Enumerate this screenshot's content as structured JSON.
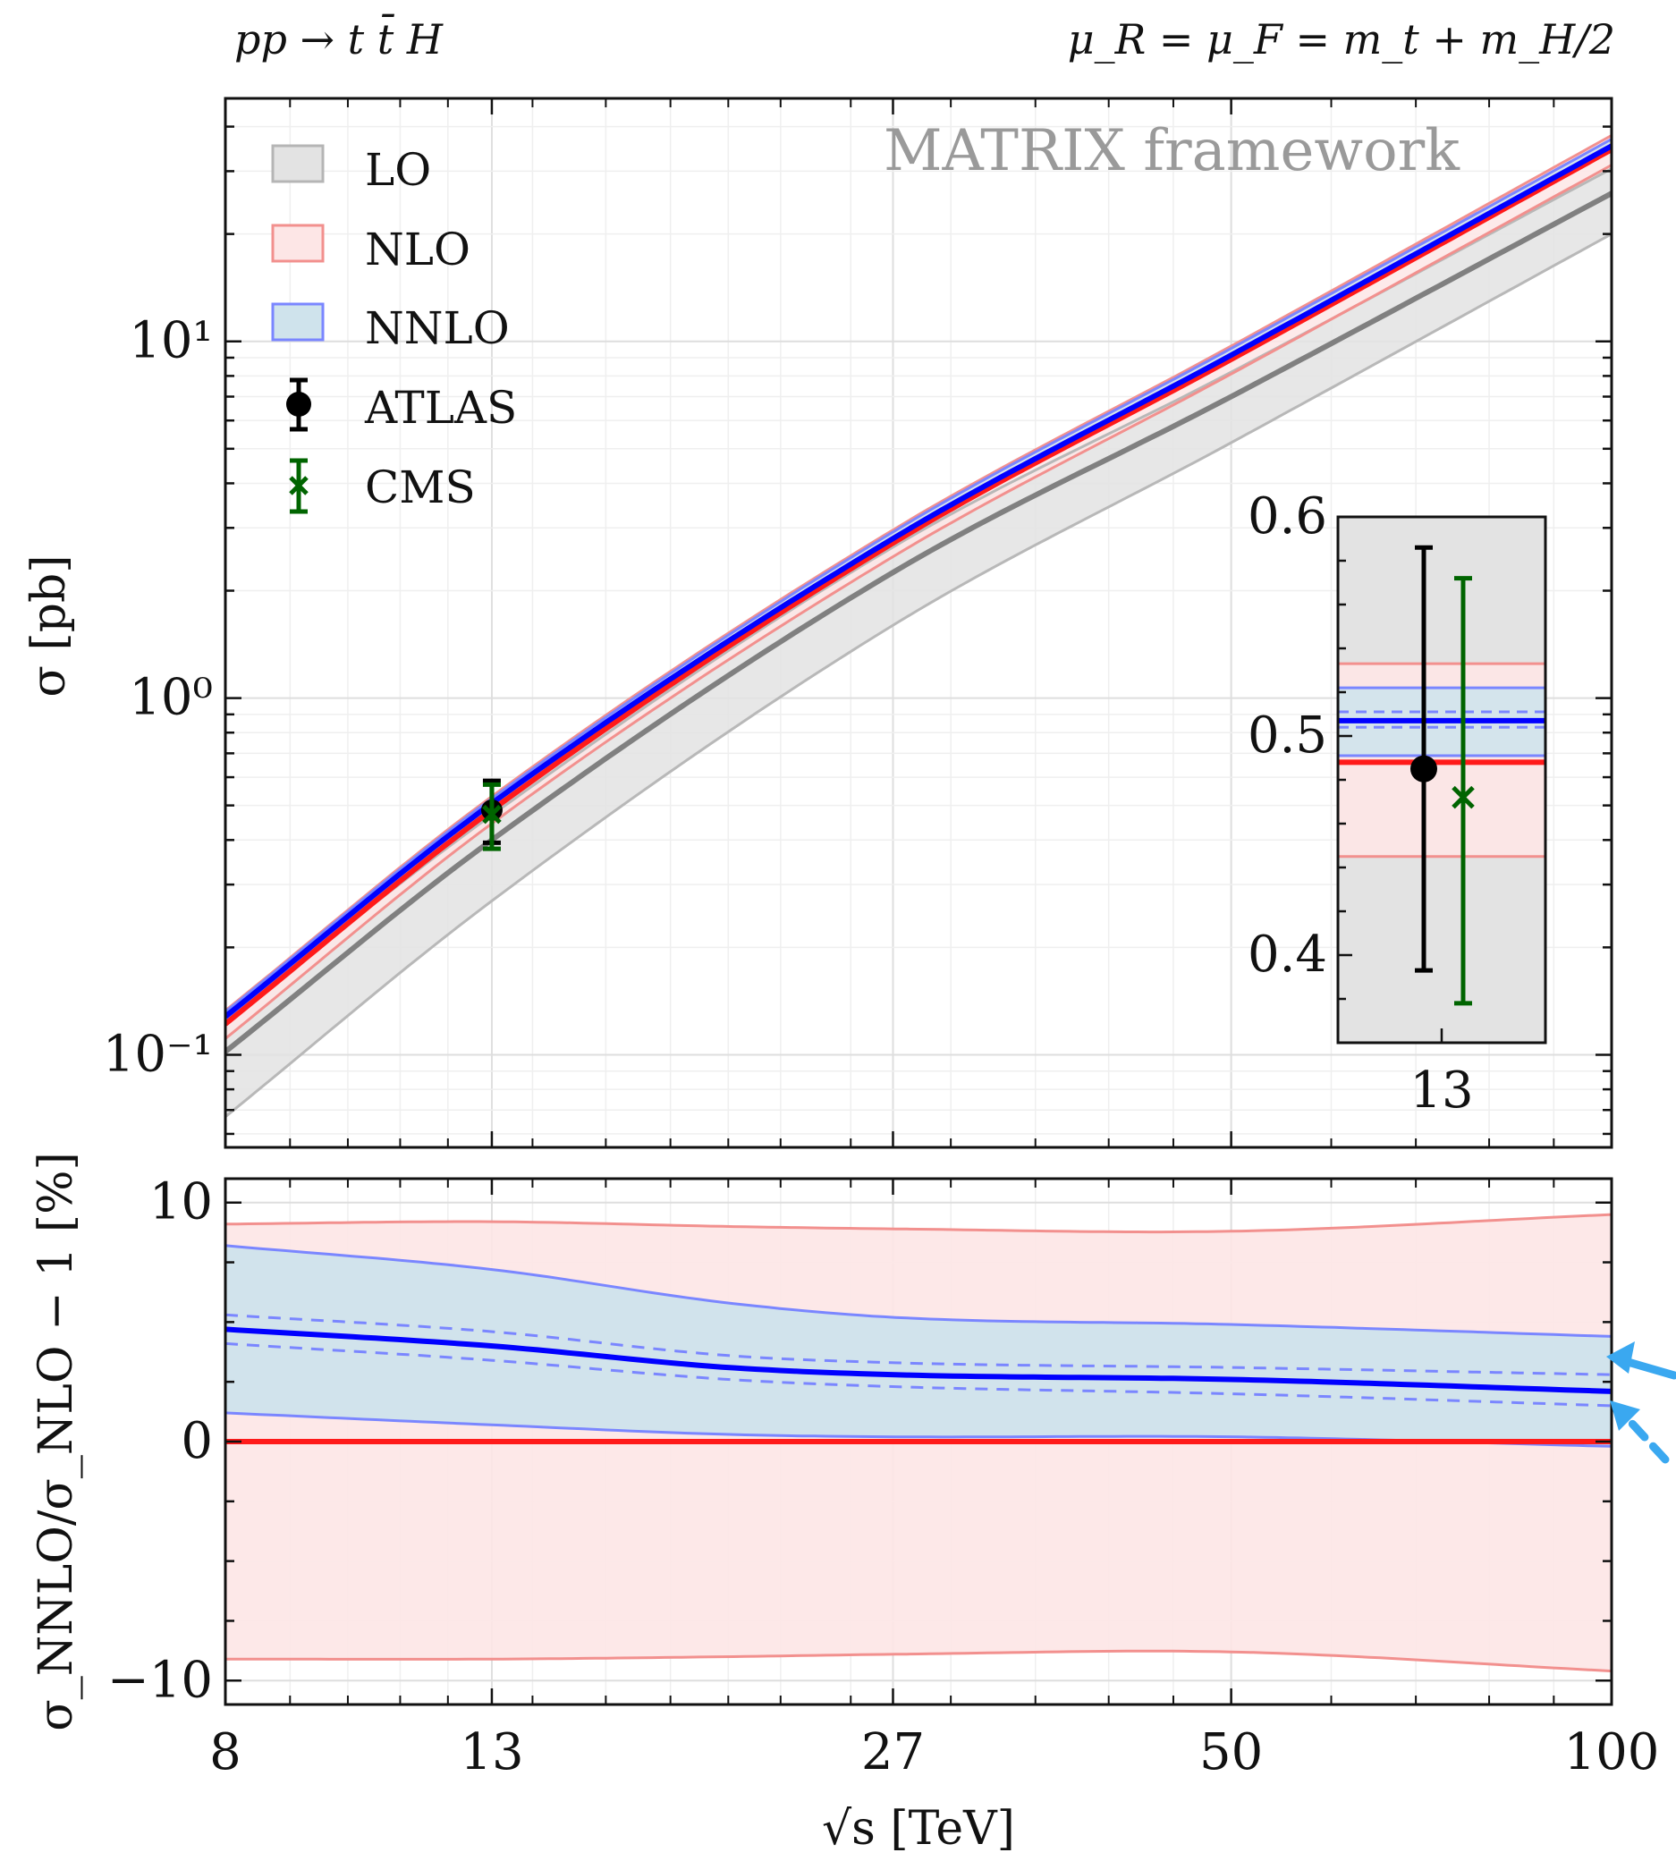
{
  "header": {
    "process": "pp → t t̄ H",
    "scale": "μ_R = μ_F = m_t + m_H/2"
  },
  "watermark": "MATRIX framework",
  "colors": {
    "LO": "#808080",
    "LO_band": "#e3e3e3",
    "NLO": "#ff1a1a",
    "NLO_band": "#fde6e6",
    "NLO_edge": "#f2908e",
    "NNLO": "#0000ff",
    "NNLO_band": "#cfe3ec",
    "NNLO_edge": "#7a86ff",
    "ATLAS": "#000000",
    "CMS": "#006400",
    "arrow": "#3aa8f0"
  },
  "chart_data": [
    {
      "type": "line",
      "xscale": "log",
      "yscale": "log",
      "xlim": [
        8,
        100
      ],
      "ylim": [
        0.055,
        48
      ],
      "ylabel": "σ [pb]",
      "yticks": [
        {
          "v": 0.1,
          "label": "10⁻¹"
        },
        {
          "v": 1,
          "label": "10⁰"
        },
        {
          "v": 10,
          "label": "10¹"
        }
      ],
      "grid": true,
      "legend": {
        "placement": "top-left",
        "entries": [
          "LO",
          "NLO",
          "NNLO",
          "ATLAS",
          "CMS"
        ]
      },
      "x": [
        8,
        13,
        27,
        50,
        100
      ],
      "series": [
        {
          "name": "LO",
          "central": [
            0.102,
            0.4,
            2.25,
            7.0,
            26.0
          ],
          "lower": [
            0.067,
            0.27,
            1.6,
            5.2,
            20.0
          ],
          "upper": [
            0.125,
            0.47,
            2.65,
            8.2,
            30.5
          ]
        },
        {
          "name": "NLO",
          "central": [
            0.122,
            0.485,
            2.72,
            8.9,
            34.5
          ],
          "lower": [
            0.111,
            0.445,
            2.49,
            8.1,
            31.2
          ],
          "upper": [
            0.133,
            0.53,
            2.96,
            9.7,
            37.8
          ]
        },
        {
          "name": "NNLO",
          "central": [
            0.128,
            0.507,
            2.8,
            9.15,
            35.3
          ],
          "lower": [
            0.124,
            0.49,
            2.73,
            8.95,
            34.6
          ],
          "upper": [
            0.132,
            0.523,
            2.92,
            9.55,
            36.9
          ]
        }
      ],
      "points": [
        {
          "name": "ATLAS",
          "x": 13,
          "y": 0.485,
          "low": 0.393,
          "high": 0.586,
          "marker": "circle"
        },
        {
          "name": "CMS",
          "x": 13,
          "y": 0.472,
          "low": 0.378,
          "high": 0.572,
          "marker": "x"
        }
      ]
    },
    {
      "type": "line",
      "xscale": "linear",
      "ylim": [
        0.36,
        0.6
      ],
      "xticks": [
        "13"
      ],
      "yticks": [
        0.4,
        0.5,
        0.6
      ],
      "hlines": [
        {
          "series": "NLO",
          "value": 0.488,
          "lower": 0.445,
          "upper": 0.533
        },
        {
          "series": "NNLO",
          "value": 0.507,
          "lower": 0.491,
          "upper": 0.522,
          "scale_lower": 0.504,
          "scale_upper": 0.511
        }
      ],
      "points": [
        {
          "name": "ATLAS",
          "y": 0.485,
          "low": 0.393,
          "high": 0.586
        },
        {
          "name": "CMS",
          "y": 0.472,
          "low": 0.378,
          "high": 0.572
        }
      ]
    },
    {
      "type": "line",
      "xscale": "log",
      "xlim": [
        8,
        100
      ],
      "ylim": [
        -11,
        11
      ],
      "xlabel": "√s [TeV]",
      "ylabel": "σ_NNLO/σ_NLO − 1 [%]",
      "xticks": [
        8,
        13,
        27,
        50,
        100
      ],
      "yticks": [
        {
          "v": -10,
          "label": "−10"
        },
        {
          "v": 0,
          "label": "0"
        },
        {
          "v": 10,
          "label": "10"
        }
      ],
      "x": [
        8,
        13,
        20,
        27,
        50,
        100
      ],
      "series": [
        {
          "name": "NLO",
          "central": [
            0,
            0,
            0,
            0,
            0,
            0
          ],
          "lower": [
            -9.1,
            -9.1,
            -9.0,
            -8.9,
            -8.8,
            -9.6
          ],
          "upper": [
            9.1,
            9.2,
            9.0,
            8.9,
            8.8,
            9.5
          ]
        },
        {
          "name": "NNLO",
          "central": [
            4.7,
            4.0,
            3.1,
            2.8,
            2.6,
            2.1
          ],
          "lower": [
            1.2,
            0.7,
            0.3,
            0.2,
            0.2,
            -0.2
          ],
          "upper": [
            8.2,
            7.2,
            5.8,
            5.2,
            4.9,
            4.4
          ],
          "dashed_lower": [
            4.1,
            3.4,
            2.6,
            2.3,
            2.0,
            1.5
          ],
          "dashed_upper": [
            5.3,
            4.6,
            3.6,
            3.3,
            3.1,
            2.8
          ]
        }
      ]
    }
  ]
}
